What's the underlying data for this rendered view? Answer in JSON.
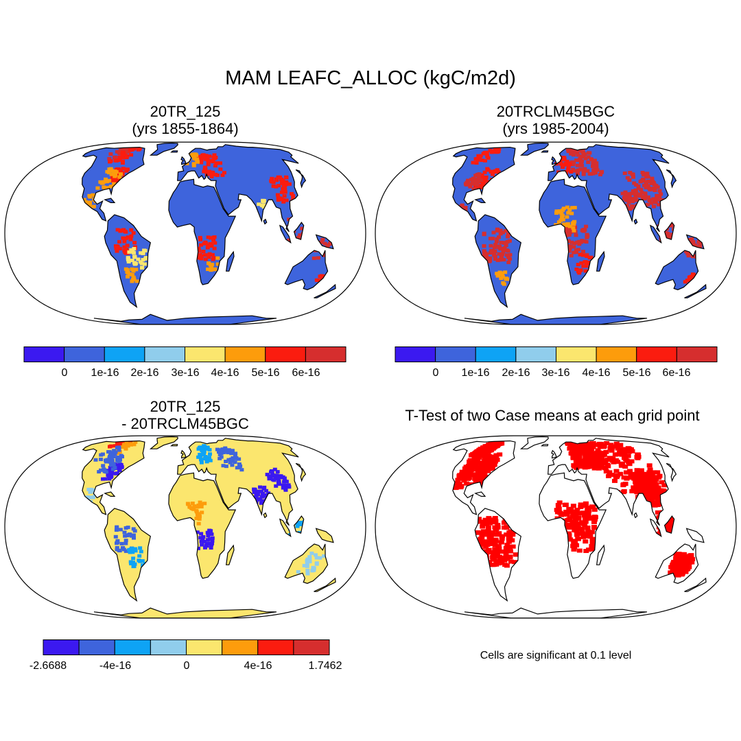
{
  "title": "MAM LEAFC_ALLOC (kgC/m2d)",
  "colors": [
    "#3b19f0",
    "#3e64dc",
    "#0ea3f5",
    "#90cdec",
    "#fbe66e",
    "#fd9c0c",
    "#fb1c0f",
    "#d62e2e"
  ],
  "panels": [
    {
      "title_line1": "20TR_125",
      "title_line2": "(yrs 1855-1864)",
      "fill": "#3e64dc",
      "colorbar_labels": [
        "0",
        "1e-16",
        "2e-16",
        "3e-16",
        "4e-16",
        "5e-16",
        "6e-16"
      ]
    },
    {
      "title_line1": "20TRCLM45BGC",
      "title_line2": "(yrs 1985-2004)",
      "fill": "#3e64dc",
      "colorbar_labels": [
        "0",
        "1e-16",
        "2e-16",
        "3e-16",
        "4e-16",
        "5e-16",
        "6e-16"
      ]
    },
    {
      "title_line1": "20TR_125",
      "title_line2": "- 20TRCLM45BGC",
      "fill": "#fbe66e",
      "colorbar_labels": [
        "-2.6688",
        "-4e-16",
        "0",
        "4e-16",
        "1.7462"
      ]
    },
    {
      "title_line1": "T-Test of two Case means at each grid point",
      "fill": "#ff0000"
    }
  ],
  "significance_note": "Cells are significant at 0.1 level"
}
